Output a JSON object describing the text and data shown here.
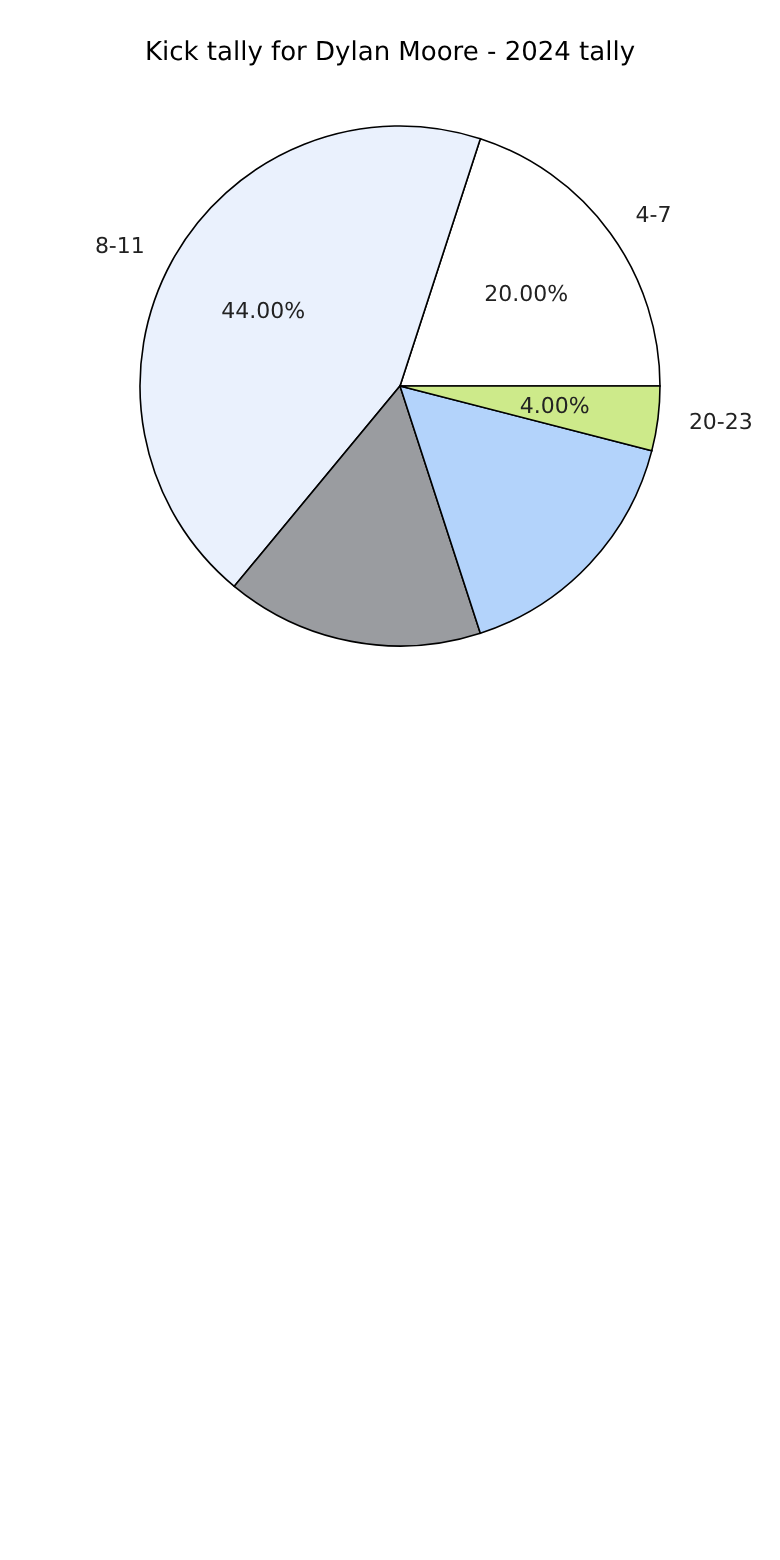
{
  "chart_data": {
    "type": "pie",
    "title": "Kick tally for Dylan Moore - 2024 tally",
    "categories": [
      "4-7",
      "8-11",
      null,
      null,
      "20-23"
    ],
    "values": [
      20,
      44,
      16,
      16,
      4
    ],
    "colors": [
      "#ffffff",
      "#eaf1fd",
      "#9a9ca0",
      "#b3d3fb",
      "#cdea8a"
    ],
    "value_labels": [
      "20.00%",
      "44.00%",
      null,
      null,
      "4.00%"
    ]
  }
}
